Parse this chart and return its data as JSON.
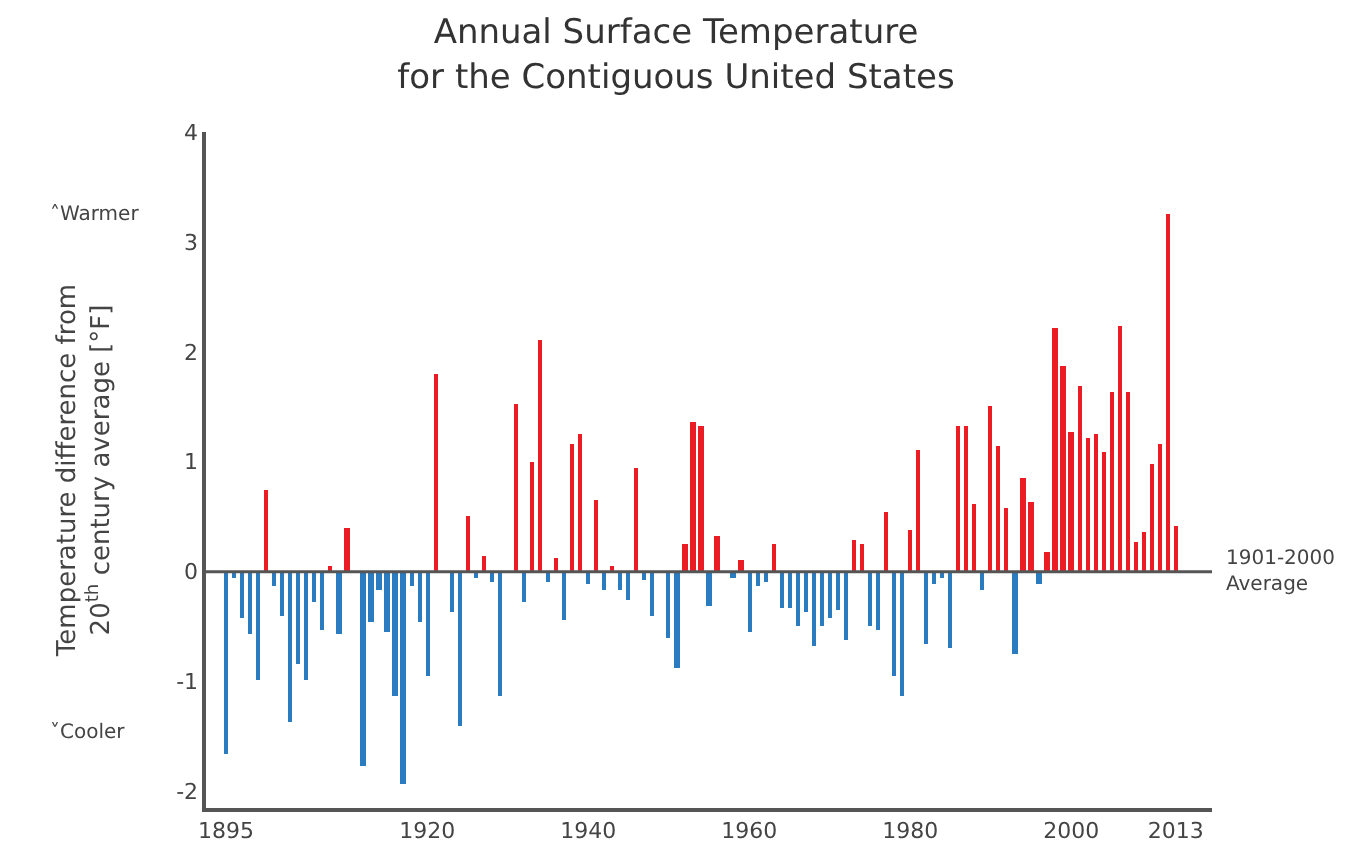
{
  "chart_data": {
    "type": "bar",
    "title": "Annual Surface Temperature\nfor the Contiguous United States",
    "ylabel": "Temperature difference from\n20$^{th}$ century average [°F]",
    "x": [
      1895,
      1896,
      1897,
      1898,
      1899,
      1900,
      1901,
      1902,
      1903,
      1904,
      1905,
      1906,
      1907,
      1908,
      1909,
      1910,
      1911,
      1912,
      1913,
      1914,
      1915,
      1916,
      1917,
      1918,
      1919,
      1920,
      1921,
      1922,
      1923,
      1924,
      1925,
      1926,
      1927,
      1928,
      1929,
      1930,
      1931,
      1932,
      1933,
      1934,
      1935,
      1936,
      1937,
      1938,
      1939,
      1940,
      1941,
      1942,
      1943,
      1944,
      1945,
      1946,
      1947,
      1948,
      1949,
      1950,
      1951,
      1952,
      1953,
      1954,
      1955,
      1956,
      1957,
      1958,
      1959,
      1960,
      1961,
      1962,
      1963,
      1964,
      1965,
      1966,
      1967,
      1968,
      1969,
      1970,
      1971,
      1972,
      1973,
      1974,
      1975,
      1976,
      1977,
      1978,
      1979,
      1980,
      1981,
      1982,
      1983,
      1984,
      1985,
      1986,
      1987,
      1988,
      1989,
      1990,
      1991,
      1992,
      1993,
      1994,
      1995,
      1996,
      1997,
      1998,
      1999,
      2000,
      2001,
      2002,
      2003,
      2004,
      2005,
      2006,
      2007,
      2008,
      2009,
      2010,
      2011,
      2012,
      2013
    ],
    "values": [
      -1.65,
      -0.05,
      -0.43,
      -0.57,
      -0.98,
      0.75,
      -0.13,
      -0.4,
      -1.37,
      -0.84,
      -0.98,
      -0.28,
      -0.53,
      0.06,
      -0.57,
      0.39,
      null,
      -1.77,
      -0.46,
      -0.16,
      -0.54,
      -1.14,
      -1.93,
      -0.13,
      -0.46,
      -0.94,
      1.8,
      null,
      -0.36,
      -1.41,
      0.5,
      -0.05,
      0.15,
      -0.09,
      -1.14,
      null,
      1.53,
      -0.28,
      0.99,
      2.1,
      -0.1,
      0.13,
      -0.44,
      1.16,
      1.26,
      -0.12,
      0.65,
      -0.16,
      0.06,
      -0.16,
      -0.25,
      0.94,
      -0.08,
      -0.4,
      null,
      -0.61,
      -0.88,
      0.26,
      1.37,
      1.33,
      -0.31,
      0.32,
      null,
      -0.06,
      0.11,
      -0.54,
      -0.13,
      -0.1,
      0.26,
      -0.33,
      -0.33,
      -0.5,
      -0.37,
      -0.68,
      -0.5,
      -0.43,
      -0.34,
      -0.63,
      0.29,
      0.26,
      -0.5,
      -0.53,
      0.54,
      -0.94,
      -1.13,
      0.38,
      1.11,
      -0.65,
      -0.12,
      -0.05,
      -0.69,
      1.32,
      1.33,
      0.61,
      -0.16,
      1.5,
      1.15,
      0.58,
      -0.74,
      0.85,
      0.64,
      -0.12,
      0.18,
      2.22,
      1.87,
      1.27,
      1.69,
      1.21,
      1.26,
      1.09,
      1.64,
      2.23,
      1.64,
      0.27,
      0.37,
      0.98,
      1.17,
      3.26,
      0.41
    ],
    "colors": [
      "#2b7bc0",
      "#2b7bc0",
      "#2b7bc0",
      "#2b7bc0",
      "#2b7bc0",
      "#ec1c24",
      "#2b7bc0",
      "#2b7bc0",
      "#2b7bc0",
      "#2b7bc0",
      "#2b7bc0",
      "#2b7bc0",
      "#2b7bc0",
      "#ec1c24",
      "#2b7bc0",
      "#ec1c24",
      "#2b7bc0",
      "#2b7bc0",
      "#2b7bc0",
      "#2b7bc0",
      "#2b7bc0",
      "#2b7bc0",
      "#2b7bc0",
      "#2b7bc0",
      "#2b7bc0",
      "#2b7bc0",
      "#ec1c24",
      "#ec1c24",
      "#2b7bc0",
      "#2b7bc0",
      "#ec1c24",
      "#2b7bc0",
      "#ec1c24",
      "#2b7bc0",
      "#2b7bc0",
      "#2b7bc0",
      "#ec1c24",
      "#2b7bc0",
      "#ec1c24",
      "#ec1c24",
      "#2b7bc0",
      "#ec1c24",
      "#2b7bc0",
      "#ec1c24",
      "#ec1c24",
      "#2b7bc0",
      "#ec1c24",
      "#2b7bc0",
      "#ec1c24",
      "#2b7bc0",
      "#2b7bc0",
      "#ec1c24",
      "#2b7bc0",
      "#2b7bc0",
      "#2b7bc0",
      "#2b7bc0",
      "#2b7bc0",
      "#ec1c24",
      "#ec1c24",
      "#ec1c24",
      "#2b7bc0",
      "#ec1c24",
      "#ec1c24",
      "#2b7bc0",
      "#ec1c24",
      "#2b7bc0",
      "#2b7bc0",
      "#2b7bc0",
      "#ec1c24",
      "#2b7bc0",
      "#2b7bc0",
      "#2b7bc0",
      "#2b7bc0",
      "#2b7bc0",
      "#2b7bc0",
      "#2b7bc0",
      "#2b7bc0",
      "#2b7bc0",
      "#ec1c24",
      "#ec1c24",
      "#2b7bc0",
      "#2b7bc0",
      "#ec1c24",
      "#2b7bc0",
      "#2b7bc0",
      "#ec1c24",
      "#ec1c24",
      "#2b7bc0",
      "#2b7bc0",
      "#2b7bc0",
      "#2b7bc0",
      "#ec1c24",
      "#ec1c24",
      "#ec1c24",
      "#2b7bc0",
      "#ec1c24",
      "#ec1c24",
      "#ec1c24",
      "#2b7bc0",
      "#ec1c24",
      "#ec1c24",
      "#2b7bc0",
      "#ec1c24",
      "#ec1c24",
      "#ec1c24",
      "#ec1c24",
      "#ec1c24",
      "#ec1c24",
      "#ec1c24",
      "#ec1c24",
      "#ec1c24",
      "#ec1c24",
      "#ec1c24",
      "#ec1c24",
      "#ec1c24",
      "#ec1c24",
      "#ec1c24",
      "#ec1c24",
      "#ec1c24"
    ],
    "xlim": [
      1892.5,
      2017.5
    ],
    "xticks": [
      1895,
      1920,
      1940,
      1960,
      1980,
      2000,
      2013
    ],
    "ylim": [
      -2.15,
      4
    ],
    "yticks": [
      -2,
      -1,
      0,
      1,
      2,
      3,
      4
    ],
    "ref_lines": [
      {
        "axis": "y",
        "value": 0,
        "label": "1901-2000\nAverage",
        "color": "#555555"
      }
    ],
    "annotations": [
      "˄Warmer",
      "˅Cooler"
    ]
  }
}
